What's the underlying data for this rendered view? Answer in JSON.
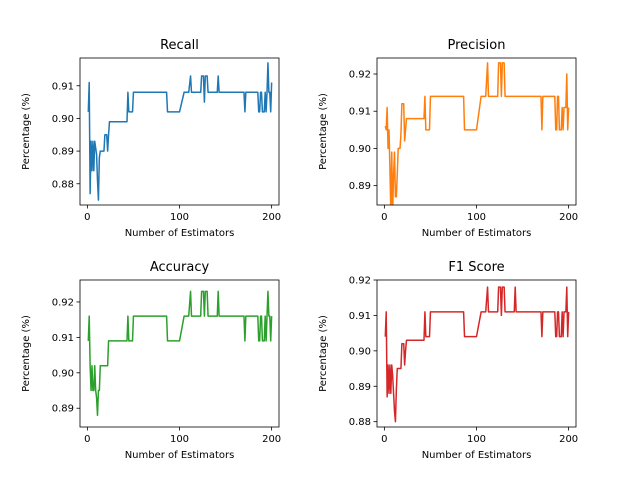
{
  "chart_data": [
    {
      "type": "line",
      "title": "Recall",
      "xlabel": "Number of Estimators",
      "ylabel": "Percentage (%)",
      "xlim": [
        -8,
        208
      ],
      "ylim": [
        0.8735,
        0.9185
      ],
      "xticks": [
        0,
        100,
        200
      ],
      "xtick_labels": [
        "0",
        "100",
        "200"
      ],
      "yticks": [
        0.88,
        0.89,
        0.9,
        0.91
      ],
      "ytick_labels": [
        "0.88",
        "0.89",
        "0.90",
        "0.91"
      ],
      "grid": false,
      "series": [
        {
          "color": "#1f77b4",
          "x": [
            1,
            2,
            3,
            4,
            5,
            6,
            7,
            8,
            9,
            10,
            11,
            12,
            13,
            14,
            15,
            16,
            17,
            18,
            19,
            20,
            21,
            22,
            23,
            24,
            25,
            26,
            27,
            28,
            29,
            30,
            35,
            40,
            42,
            43,
            44,
            45,
            46,
            47,
            48,
            49,
            50,
            60,
            70,
            80,
            85,
            86,
            87,
            88,
            89,
            90,
            100,
            105,
            110,
            112,
            113,
            114,
            115,
            120,
            123,
            124,
            125,
            126,
            127,
            128,
            129,
            130,
            131,
            132,
            133,
            134,
            135,
            136,
            137,
            138,
            139,
            140,
            141,
            142,
            143,
            144,
            145,
            160,
            170,
            171,
            172,
            173,
            174,
            175,
            180,
            185,
            186,
            187,
            188,
            189,
            190,
            191,
            192,
            193,
            194,
            195,
            196,
            197,
            198,
            199,
            200
          ],
          "y": [
            0.902,
            0.911,
            0.877,
            0.893,
            0.884,
            0.893,
            0.884,
            0.893,
            0.891,
            0.889,
            0.881,
            0.875,
            0.888,
            0.89,
            0.89,
            0.89,
            0.89,
            0.89,
            0.895,
            0.895,
            0.895,
            0.89,
            0.895,
            0.899,
            0.899,
            0.899,
            0.899,
            0.899,
            0.899,
            0.899,
            0.899,
            0.899,
            0.899,
            0.899,
            0.908,
            0.902,
            0.902,
            0.902,
            0.902,
            0.902,
            0.908,
            0.908,
            0.908,
            0.908,
            0.908,
            0.908,
            0.902,
            0.902,
            0.902,
            0.902,
            0.902,
            0.908,
            0.908,
            0.913,
            0.908,
            0.908,
            0.908,
            0.908,
            0.908,
            0.913,
            0.913,
            0.913,
            0.905,
            0.913,
            0.913,
            0.913,
            0.908,
            0.908,
            0.908,
            0.908,
            0.908,
            0.908,
            0.908,
            0.908,
            0.908,
            0.908,
            0.908,
            0.913,
            0.908,
            0.908,
            0.908,
            0.908,
            0.908,
            0.902,
            0.908,
            0.908,
            0.908,
            0.908,
            0.908,
            0.908,
            0.902,
            0.902,
            0.908,
            0.908,
            0.902,
            0.902,
            0.902,
            0.908,
            0.902,
            0.908,
            0.917,
            0.908,
            0.908,
            0.902,
            0.911
          ]
        }
      ]
    },
    {
      "type": "line",
      "title": "Precision",
      "xlabel": "Number of Estimators",
      "ylabel": "Percentage (%)",
      "xlim": [
        -8,
        208
      ],
      "ylim": [
        0.8848,
        0.9243
      ],
      "xticks": [
        0,
        100,
        200
      ],
      "xtick_labels": [
        "0",
        "100",
        "200"
      ],
      "yticks": [
        0.89,
        0.9,
        0.91,
        0.92
      ],
      "ytick_labels": [
        "0.89",
        "0.90",
        "0.91",
        "0.92"
      ],
      "grid": false,
      "series": [
        {
          "color": "#ff7f0e",
          "x": [
            1,
            2,
            3,
            4,
            5,
            6,
            7,
            8,
            9,
            10,
            11,
            12,
            13,
            14,
            15,
            16,
            17,
            18,
            19,
            20,
            21,
            22,
            23,
            24,
            25,
            26,
            27,
            28,
            29,
            30,
            35,
            40,
            42,
            43,
            44,
            45,
            46,
            47,
            48,
            49,
            50,
            60,
            70,
            80,
            85,
            86,
            87,
            88,
            89,
            90,
            100,
            105,
            110,
            112,
            113,
            114,
            115,
            120,
            123,
            124,
            125,
            126,
            127,
            128,
            129,
            130,
            131,
            132,
            133,
            134,
            135,
            136,
            137,
            138,
            139,
            140,
            141,
            142,
            143,
            144,
            145,
            160,
            170,
            171,
            172,
            173,
            174,
            175,
            180,
            185,
            186,
            187,
            188,
            189,
            190,
            191,
            192,
            193,
            194,
            195,
            196,
            197,
            198,
            199,
            200
          ],
          "y": [
            0.906,
            0.905,
            0.911,
            0.9,
            0.905,
            0.895,
            0.883,
            0.899,
            0.883,
            0.893,
            0.899,
            0.887,
            0.887,
            0.893,
            0.9,
            0.9,
            0.9,
            0.904,
            0.912,
            0.912,
            0.912,
            0.902,
            0.905,
            0.908,
            0.908,
            0.908,
            0.908,
            0.908,
            0.908,
            0.908,
            0.908,
            0.908,
            0.908,
            0.908,
            0.914,
            0.905,
            0.905,
            0.905,
            0.905,
            0.905,
            0.914,
            0.914,
            0.914,
            0.914,
            0.914,
            0.914,
            0.905,
            0.905,
            0.905,
            0.905,
            0.905,
            0.914,
            0.914,
            0.923,
            0.914,
            0.914,
            0.914,
            0.914,
            0.914,
            0.923,
            0.923,
            0.923,
            0.914,
            0.923,
            0.923,
            0.923,
            0.914,
            0.914,
            0.914,
            0.914,
            0.914,
            0.914,
            0.914,
            0.914,
            0.914,
            0.914,
            0.914,
            0.914,
            0.914,
            0.914,
            0.914,
            0.914,
            0.914,
            0.905,
            0.914,
            0.914,
            0.914,
            0.914,
            0.914,
            0.914,
            0.905,
            0.905,
            0.914,
            0.914,
            0.905,
            0.905,
            0.905,
            0.911,
            0.905,
            0.911,
            0.911,
            0.911,
            0.92,
            0.905,
            0.911
          ]
        }
      ]
    },
    {
      "type": "line",
      "title": "Accuracy",
      "xlabel": "Number of Estimators",
      "ylabel": "Percentage (%)",
      "xlim": [
        -8,
        208
      ],
      "ylim": [
        0.8847,
        0.9262
      ],
      "xticks": [
        0,
        100,
        200
      ],
      "xtick_labels": [
        "0",
        "100",
        "200"
      ],
      "yticks": [
        0.89,
        0.9,
        0.91,
        0.92
      ],
      "ytick_labels": [
        "0.89",
        "0.90",
        "0.91",
        "0.92"
      ],
      "grid": false,
      "series": [
        {
          "color": "#2ca02c",
          "x": [
            1,
            2,
            3,
            4,
            5,
            6,
            7,
            8,
            9,
            10,
            11,
            12,
            13,
            14,
            15,
            16,
            17,
            18,
            19,
            20,
            21,
            22,
            23,
            24,
            25,
            26,
            27,
            28,
            29,
            30,
            35,
            40,
            42,
            43,
            44,
            45,
            46,
            47,
            48,
            49,
            50,
            60,
            70,
            80,
            85,
            86,
            87,
            88,
            89,
            90,
            100,
            105,
            110,
            112,
            113,
            114,
            115,
            120,
            123,
            124,
            125,
            126,
            127,
            128,
            129,
            130,
            131,
            132,
            133,
            134,
            135,
            136,
            137,
            138,
            139,
            140,
            141,
            142,
            143,
            144,
            145,
            160,
            170,
            171,
            172,
            173,
            174,
            175,
            180,
            185,
            186,
            187,
            188,
            189,
            190,
            191,
            192,
            193,
            194,
            195,
            196,
            197,
            198,
            199,
            200
          ],
          "y": [
            0.909,
            0.916,
            0.902,
            0.895,
            0.902,
            0.895,
            0.895,
            0.902,
            0.895,
            0.893,
            0.888,
            0.895,
            0.895,
            0.902,
            0.902,
            0.902,
            0.902,
            0.902,
            0.902,
            0.902,
            0.902,
            0.902,
            0.909,
            0.909,
            0.909,
            0.909,
            0.909,
            0.909,
            0.909,
            0.909,
            0.909,
            0.909,
            0.909,
            0.909,
            0.916,
            0.909,
            0.909,
            0.909,
            0.909,
            0.909,
            0.916,
            0.916,
            0.916,
            0.916,
            0.916,
            0.916,
            0.909,
            0.909,
            0.909,
            0.909,
            0.909,
            0.916,
            0.916,
            0.923,
            0.916,
            0.916,
            0.916,
            0.916,
            0.916,
            0.923,
            0.923,
            0.923,
            0.916,
            0.923,
            0.923,
            0.923,
            0.916,
            0.916,
            0.916,
            0.916,
            0.916,
            0.916,
            0.916,
            0.916,
            0.916,
            0.916,
            0.916,
            0.923,
            0.916,
            0.916,
            0.916,
            0.916,
            0.916,
            0.909,
            0.916,
            0.916,
            0.916,
            0.916,
            0.916,
            0.916,
            0.909,
            0.909,
            0.916,
            0.916,
            0.909,
            0.909,
            0.909,
            0.916,
            0.909,
            0.916,
            0.923,
            0.916,
            0.916,
            0.909,
            0.916
          ]
        }
      ]
    },
    {
      "type": "line",
      "title": "F1 Score",
      "xlabel": "Number of Estimators",
      "ylabel": "Percentage (%)",
      "xlim": [
        -8,
        208
      ],
      "ylim": [
        0.8785,
        0.92
      ],
      "xticks": [
        0,
        100,
        200
      ],
      "xtick_labels": [
        "0",
        "100",
        "200"
      ],
      "yticks": [
        0.88,
        0.89,
        0.9,
        0.91,
        0.92
      ],
      "ytick_labels": [
        "0.88",
        "0.89",
        "0.90",
        "0.91",
        "0.92"
      ],
      "grid": false,
      "series": [
        {
          "color": "#d62728",
          "x": [
            1,
            2,
            3,
            4,
            5,
            6,
            7,
            8,
            9,
            10,
            11,
            12,
            13,
            14,
            15,
            16,
            17,
            18,
            19,
            20,
            21,
            22,
            23,
            24,
            25,
            26,
            27,
            28,
            29,
            30,
            35,
            40,
            42,
            43,
            44,
            45,
            46,
            47,
            48,
            49,
            50,
            60,
            70,
            80,
            85,
            86,
            87,
            88,
            89,
            90,
            100,
            105,
            110,
            112,
            113,
            114,
            115,
            120,
            123,
            124,
            125,
            126,
            127,
            128,
            129,
            130,
            131,
            132,
            133,
            134,
            135,
            136,
            137,
            138,
            139,
            140,
            141,
            142,
            143,
            144,
            145,
            160,
            170,
            171,
            172,
            173,
            174,
            175,
            180,
            185,
            186,
            187,
            188,
            189,
            190,
            191,
            192,
            193,
            194,
            195,
            196,
            197,
            198,
            199,
            200
          ],
          "y": [
            0.904,
            0.911,
            0.887,
            0.896,
            0.888,
            0.896,
            0.888,
            0.896,
            0.893,
            0.888,
            0.883,
            0.88,
            0.889,
            0.895,
            0.895,
            0.895,
            0.895,
            0.895,
            0.902,
            0.902,
            0.902,
            0.896,
            0.9,
            0.903,
            0.903,
            0.903,
            0.903,
            0.903,
            0.903,
            0.903,
            0.903,
            0.903,
            0.903,
            0.903,
            0.911,
            0.904,
            0.904,
            0.904,
            0.904,
            0.904,
            0.911,
            0.911,
            0.911,
            0.911,
            0.911,
            0.911,
            0.904,
            0.904,
            0.904,
            0.904,
            0.904,
            0.911,
            0.911,
            0.918,
            0.911,
            0.911,
            0.911,
            0.911,
            0.911,
            0.918,
            0.918,
            0.918,
            0.91,
            0.918,
            0.918,
            0.918,
            0.911,
            0.911,
            0.911,
            0.911,
            0.911,
            0.911,
            0.911,
            0.911,
            0.911,
            0.911,
            0.911,
            0.918,
            0.911,
            0.911,
            0.911,
            0.911,
            0.911,
            0.904,
            0.911,
            0.911,
            0.911,
            0.911,
            0.911,
            0.911,
            0.904,
            0.904,
            0.911,
            0.911,
            0.904,
            0.904,
            0.904,
            0.911,
            0.904,
            0.911,
            0.911,
            0.911,
            0.918,
            0.904,
            0.911
          ]
        }
      ]
    }
  ]
}
